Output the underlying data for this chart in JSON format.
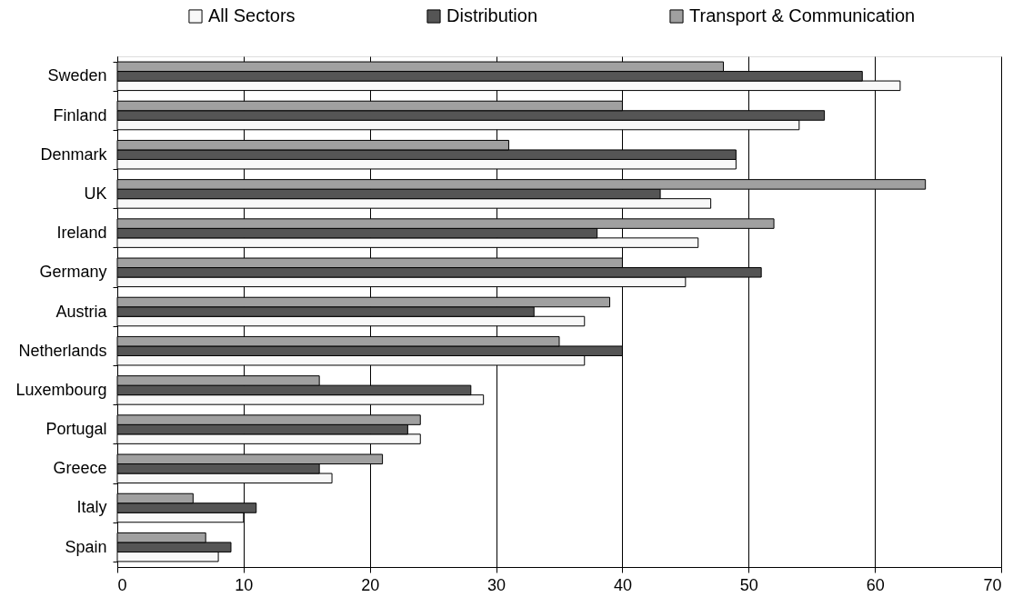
{
  "chart_data": {
    "type": "bar",
    "orientation": "horizontal",
    "categories": [
      "Sweden",
      "Finland",
      "Denmark",
      "UK",
      "Ireland",
      "Germany",
      "Austria",
      "Netherlands",
      "Luxembourg",
      "Portugal",
      "Greece",
      "Italy",
      "Spain"
    ],
    "series": [
      {
        "name": "All Sectors",
        "color": "#f8f8f8",
        "values": [
          62,
          54,
          49,
          47,
          46,
          45,
          37,
          37,
          29,
          24,
          17,
          10,
          8
        ]
      },
      {
        "name": "Distribution",
        "color": "#555555",
        "values": [
          59,
          56,
          49,
          43,
          38,
          51,
          33,
          40,
          28,
          23,
          16,
          11,
          9
        ]
      },
      {
        "name": "Transport & Communication",
        "color": "#a0a0a0",
        "values": [
          48,
          40,
          31,
          64,
          52,
          40,
          39,
          35,
          16,
          24,
          21,
          6,
          7
        ]
      }
    ],
    "xlim": [
      0,
      70
    ],
    "xticks": [
      0,
      10,
      20,
      30,
      40,
      50,
      60,
      70
    ],
    "grid": "x",
    "legend": "top"
  }
}
